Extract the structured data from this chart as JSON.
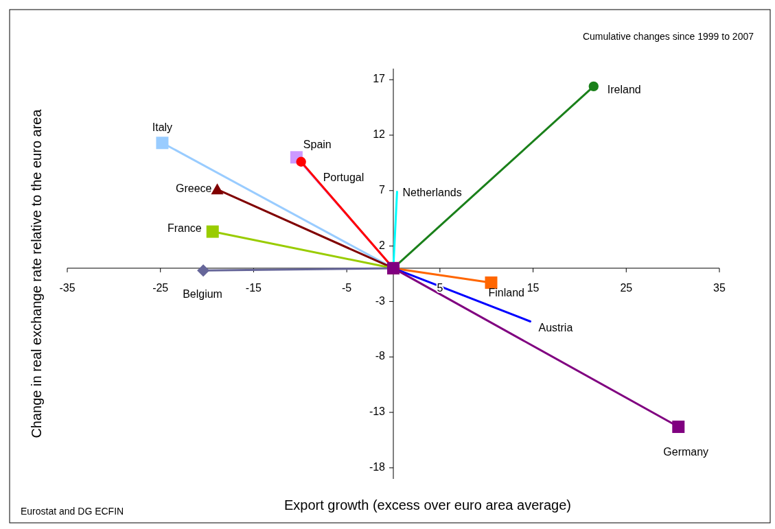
{
  "chart_data": {
    "type": "line",
    "title": "Cumulative changes since 1999 to 2007",
    "xlabel": "Export growth (excess over euro area average)",
    "ylabel": "Change in real exchange rate relative to the euro area",
    "annotations": [
      "Eurostat and DG ECFIN"
    ],
    "xlim": [
      -35,
      35
    ],
    "ylim": [
      -19,
      18
    ],
    "xticks": [
      -35,
      -25,
      -15,
      -5,
      5,
      15,
      25,
      35
    ],
    "yticks": [
      17,
      12,
      7,
      2,
      -3,
      -8,
      -13,
      -18
    ],
    "grid": false,
    "series": [
      {
        "name": "Ireland",
        "color": "#1a801a",
        "marker": "circle",
        "x": [
          0,
          21.5
        ],
        "values": [
          0,
          16.4
        ]
      },
      {
        "name": "Italy",
        "color": "#99ccff",
        "marker": "square",
        "x": [
          0,
          -24.8
        ],
        "values": [
          0,
          11.3
        ]
      },
      {
        "name": "Spain",
        "color": "#cc99ff",
        "marker": "square",
        "x": [
          0,
          -10.4
        ],
        "values": [
          0,
          10
        ]
      },
      {
        "name": "Portugal",
        "color": "#ff0000",
        "marker": "circle",
        "x": [
          0,
          -9.9
        ],
        "values": [
          0,
          9.6
        ]
      },
      {
        "name": "Greece",
        "color": "#800000",
        "marker": "triangle",
        "x": [
          0,
          -18.9
        ],
        "values": [
          0,
          7.1
        ]
      },
      {
        "name": "Netherlands",
        "color": "#00ffff",
        "marker": "none",
        "x": [
          0,
          0.4
        ],
        "values": [
          0,
          6.9
        ]
      },
      {
        "name": "France",
        "color": "#99cc00",
        "marker": "square",
        "x": [
          0,
          -19.4
        ],
        "values": [
          0,
          3.3
        ]
      },
      {
        "name": "Belgium",
        "color": "#666699",
        "marker": "diamond",
        "x": [
          0,
          -20.4
        ],
        "values": [
          0,
          -0.2
        ]
      },
      {
        "name": "Finland",
        "color": "#ff6600",
        "marker": "square",
        "x": [
          0,
          10.5
        ],
        "values": [
          0,
          -1.3
        ]
      },
      {
        "name": "Austria",
        "color": "#0000ff",
        "marker": "none",
        "x": [
          0,
          14.7
        ],
        "values": [
          0,
          -4.8
        ]
      },
      {
        "name": "Germany",
        "color": "#800080",
        "marker": "square",
        "x": [
          0,
          30.6
        ],
        "values": [
          0,
          -14.3
        ]
      }
    ]
  }
}
